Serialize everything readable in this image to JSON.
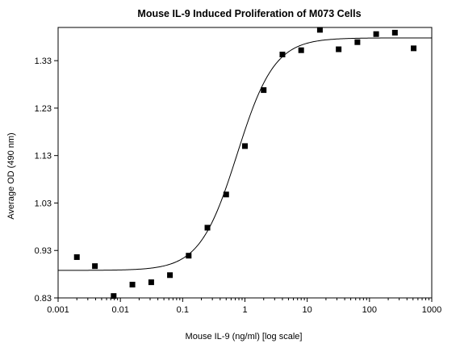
{
  "chart_data": {
    "type": "scatter",
    "title": "Mouse IL-9 Induced Proliferation of M073 Cells",
    "xlabel": "Mouse IL-9 (ng/ml) [log scale]",
    "ylabel": "Average OD (490 nm)",
    "x_scale": "log",
    "xlim": [
      0.001,
      1000
    ],
    "ylim": [
      0.83,
      1.4
    ],
    "x_ticks": [
      "0.001",
      "0.01",
      "0.1",
      "1",
      "10",
      "100",
      "1000"
    ],
    "x_tick_values": [
      0.001,
      0.01,
      0.1,
      1,
      10,
      100,
      1000
    ],
    "y_ticks": [
      "0.83",
      "0.93",
      "1.03",
      "1.13",
      "1.23",
      "1.33"
    ],
    "y_tick_values": [
      0.83,
      0.93,
      1.03,
      1.13,
      1.23,
      1.33
    ],
    "grid": false,
    "series": [
      {
        "marker": "square",
        "x": [
          0.002,
          0.0039,
          0.0078,
          0.0156,
          0.0313,
          0.0625,
          0.125,
          0.25,
          0.5,
          1,
          2,
          4,
          8,
          16,
          32,
          64,
          128,
          256,
          512
        ],
        "y": [
          0.916,
          0.897,
          0.834,
          0.858,
          0.863,
          0.878,
          0.919,
          0.978,
          1.048,
          1.15,
          1.268,
          1.343,
          1.352,
          1.395,
          1.354,
          1.369,
          1.386,
          1.389,
          1.356
        ]
      }
    ],
    "fit_curve": {
      "type": "4PL",
      "bottom": 0.888,
      "top": 1.378,
      "ec50": 0.75,
      "hill": 1.45
    },
    "colors": {
      "markers": "#000000",
      "curve": "#000000",
      "axes": "#000000"
    }
  }
}
